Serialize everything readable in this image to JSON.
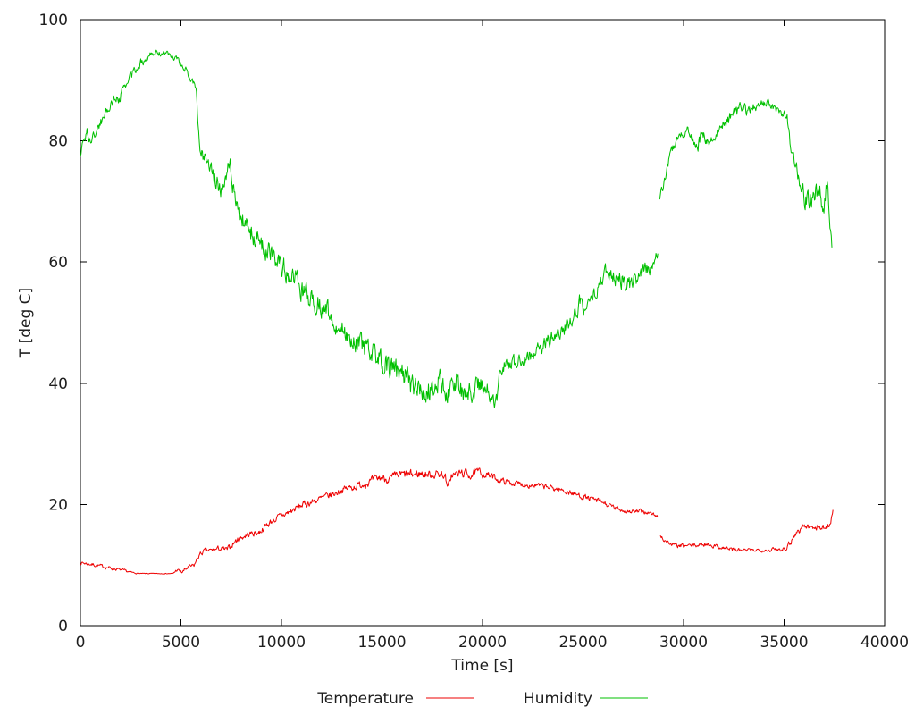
{
  "page": {
    "background": "#ffffff"
  },
  "chart_data": {
    "type": "line",
    "title": "",
    "xlabel": "Time [s]",
    "ylabel": "T [deg C]",
    "xlim": [
      0,
      40000
    ],
    "ylim": [
      0,
      100
    ],
    "xticks": [
      0,
      5000,
      10000,
      15000,
      20000,
      25000,
      30000,
      35000,
      40000
    ],
    "yticks": [
      0,
      20,
      40,
      60,
      80,
      100
    ],
    "grid": false,
    "legend_position": "below-center",
    "axis_color": "#000000",
    "text_color": "#1e1e1e",
    "legend": [
      {
        "label": "Temperature",
        "color": "#ee0000"
      },
      {
        "label": "Humidity",
        "color": "#00c000"
      }
    ],
    "series": [
      {
        "name": "Temperature",
        "color": "#ee0000",
        "points_format": [
          "t_seconds",
          "value_degC",
          "noise_halfrange"
        ],
        "segments": [
          [
            [
              0,
              10.4,
              0.25
            ],
            [
              400,
              10.2,
              0.25
            ],
            [
              900,
              9.9,
              0.25
            ],
            [
              1500,
              9.5,
              0.25
            ],
            [
              2000,
              9.2,
              0.2
            ],
            [
              2500,
              8.8,
              0.15
            ],
            [
              2900,
              8.6,
              0.05
            ],
            [
              4600,
              8.6,
              0.05
            ],
            [
              4800,
              9.2,
              0.25
            ],
            [
              5050,
              8.8,
              0.25
            ],
            [
              5350,
              9.6,
              0.3
            ],
            [
              5650,
              9.9,
              0.3
            ],
            [
              5750,
              10.6,
              0.3
            ],
            [
              5900,
              11.6,
              0.35
            ],
            [
              6150,
              12.3,
              0.35
            ],
            [
              6500,
              12.4,
              0.35
            ],
            [
              6900,
              12.7,
              0.4
            ],
            [
              7300,
              12.5,
              0.4
            ],
            [
              7700,
              13.9,
              0.4
            ],
            [
              8100,
              14.7,
              0.45
            ],
            [
              8500,
              15.2,
              0.45
            ],
            [
              8900,
              15.4,
              0.45
            ],
            [
              9200,
              16.4,
              0.5
            ],
            [
              9600,
              17.4,
              0.5
            ],
            [
              10000,
              18.1,
              0.5
            ],
            [
              10500,
              18.9,
              0.5
            ],
            [
              11000,
              19.9,
              0.5
            ],
            [
              11500,
              20.4,
              0.5
            ],
            [
              12000,
              21.0,
              0.5
            ],
            [
              12500,
              21.6,
              0.5
            ],
            [
              13100,
              22.5,
              0.5
            ],
            [
              13700,
              23.0,
              0.55
            ],
            [
              14300,
              23.6,
              0.55
            ],
            [
              14900,
              24.4,
              0.6
            ],
            [
              15400,
              24.2,
              0.6
            ],
            [
              15900,
              24.9,
              0.65
            ],
            [
              16400,
              24.8,
              0.7
            ],
            [
              16900,
              25.1,
              0.65
            ],
            [
              17400,
              24.9,
              0.6
            ],
            [
              17900,
              25.1,
              0.6
            ],
            [
              18150,
              24.7,
              0.4
            ],
            [
              18250,
              22.7,
              0.3
            ],
            [
              18450,
              24.8,
              0.6
            ],
            [
              19000,
              25.2,
              0.65
            ],
            [
              19400,
              24.9,
              0.65
            ],
            [
              19800,
              25.3,
              0.6
            ],
            [
              20200,
              24.9,
              0.55
            ],
            [
              20600,
              24.4,
              0.5
            ],
            [
              21000,
              23.9,
              0.4
            ],
            [
              21500,
              23.5,
              0.4
            ],
            [
              22100,
              23.3,
              0.4
            ],
            [
              22700,
              23.1,
              0.4
            ],
            [
              23300,
              22.8,
              0.4
            ],
            [
              23900,
              22.4,
              0.4
            ],
            [
              24500,
              21.8,
              0.4
            ],
            [
              25000,
              21.3,
              0.4
            ],
            [
              25500,
              20.8,
              0.4
            ],
            [
              26000,
              20.3,
              0.4
            ],
            [
              26400,
              19.6,
              0.4
            ],
            [
              26800,
              19.2,
              0.35
            ],
            [
              27200,
              18.9,
              0.35
            ],
            [
              27700,
              18.8,
              0.35
            ],
            [
              28200,
              18.7,
              0.3
            ],
            [
              28500,
              18.3,
              0.3
            ],
            [
              28700,
              18.0,
              0.25
            ]
          ],
          [
            [
              28830,
              14.9,
              0.4
            ],
            [
              29100,
              14.0,
              0.35
            ],
            [
              29400,
              13.4,
              0.3
            ],
            [
              29800,
              13.1,
              0.3
            ],
            [
              30300,
              13.2,
              0.3
            ],
            [
              30800,
              13.3,
              0.3
            ],
            [
              31200,
              13.5,
              0.3
            ],
            [
              31600,
              13.1,
              0.3
            ],
            [
              32100,
              12.8,
              0.3
            ],
            [
              32600,
              12.5,
              0.3
            ],
            [
              33100,
              12.4,
              0.25
            ],
            [
              33700,
              12.5,
              0.25
            ],
            [
              34300,
              12.5,
              0.3
            ],
            [
              34800,
              12.6,
              0.3
            ],
            [
              35100,
              12.9,
              0.35
            ],
            [
              35350,
              14.0,
              0.5
            ],
            [
              35550,
              15.1,
              0.5
            ],
            [
              35750,
              15.7,
              0.5
            ],
            [
              35950,
              16.5,
              0.5
            ],
            [
              36250,
              16.2,
              0.45
            ],
            [
              36550,
              16.4,
              0.45
            ],
            [
              36850,
              16.1,
              0.4
            ],
            [
              37150,
              16.3,
              0.4
            ],
            [
              37320,
              17.1,
              0.4
            ],
            [
              37430,
              19.1,
              0.3
            ]
          ]
        ]
      },
      {
        "name": "Humidity",
        "color": "#00c000",
        "points_format": [
          "t_seconds",
          "value",
          "noise_halfrange"
        ],
        "segments": [
          [
            [
              0,
              77.5,
              0.6
            ],
            [
              150,
              80.2,
              0.6
            ],
            [
              330,
              81.3,
              0.9
            ],
            [
              520,
              79.9,
              0.6
            ],
            [
              800,
              81.6,
              0.7
            ],
            [
              1200,
              84.3,
              0.7
            ],
            [
              1600,
              86.6,
              0.8
            ],
            [
              1950,
              87.3,
              0.8
            ],
            [
              2150,
              88.4,
              0.7
            ],
            [
              2550,
              90.9,
              0.7
            ],
            [
              3000,
              92.9,
              0.6
            ],
            [
              3400,
              94.0,
              0.5
            ],
            [
              3800,
              94.5,
              0.45
            ],
            [
              4250,
              94.4,
              0.45
            ],
            [
              4650,
              93.8,
              0.5
            ],
            [
              5000,
              92.7,
              0.5
            ],
            [
              5300,
              91.3,
              0.55
            ],
            [
              5600,
              89.7,
              0.6
            ],
            [
              5770,
              88.2,
              0.5
            ],
            [
              5850,
              82.8,
              0.9
            ],
            [
              5980,
              78.3,
              0.9
            ],
            [
              6150,
              77.2,
              1.1
            ],
            [
              6450,
              76.6,
              1.3
            ],
            [
              6650,
              74.2,
              1.3
            ],
            [
              6950,
              72.0,
              1.6
            ],
            [
              7250,
              75.4,
              1.6
            ],
            [
              7450,
              76.2,
              1.3
            ],
            [
              7650,
              70.8,
              1.4
            ],
            [
              7950,
              67.6,
              1.3
            ],
            [
              8350,
              65.6,
              1.6
            ],
            [
              8750,
              64.1,
              1.6
            ],
            [
              9050,
              62.6,
              1.6
            ],
            [
              9450,
              61.6,
              1.4
            ],
            [
              9850,
              60.1,
              1.4
            ],
            [
              10350,
              58.1,
              1.6
            ],
            [
              10850,
              56.1,
              1.6
            ],
            [
              11350,
              54.1,
              1.6
            ],
            [
              11750,
              53.6,
              1.6
            ],
            [
              12250,
              51.6,
              1.6
            ],
            [
              12750,
              49.6,
              1.4
            ],
            [
              13350,
              48.1,
              1.4
            ],
            [
              13950,
              46.1,
              1.6
            ],
            [
              14550,
              44.6,
              1.6
            ],
            [
              15050,
              43.4,
              1.7
            ],
            [
              15600,
              41.6,
              1.9
            ],
            [
              16000,
              42.1,
              1.9
            ],
            [
              16450,
              39.6,
              1.9
            ],
            [
              16850,
              38.6,
              1.6
            ],
            [
              17250,
              39.1,
              1.9
            ],
            [
              17650,
              38.1,
              1.6
            ],
            [
              17880,
              41.6,
              2.1
            ],
            [
              18100,
              38.9,
              1.9
            ],
            [
              18350,
              38.4,
              1.9
            ],
            [
              18700,
              39.9,
              2.1
            ],
            [
              19100,
              38.6,
              1.6
            ],
            [
              19500,
              38.6,
              1.6
            ],
            [
              19820,
              40.1,
              1.6
            ],
            [
              20150,
              38.6,
              1.6
            ],
            [
              20500,
              37.6,
              1.3
            ],
            [
              20720,
              37.1,
              0.9
            ],
            [
              20820,
              42.1,
              1.1
            ],
            [
              21050,
              43.1,
              1.1
            ],
            [
              21850,
              43.3,
              1.1
            ],
            [
              22450,
              44.8,
              1.1
            ],
            [
              23250,
              46.8,
              1.1
            ],
            [
              23950,
              48.8,
              1.1
            ],
            [
              24450,
              50.2,
              1.1
            ],
            [
              24820,
              53.1,
              1.3
            ],
            [
              25150,
              51.9,
              1.1
            ],
            [
              25700,
              55.7,
              1.1
            ],
            [
              26050,
              58.1,
              1.3
            ],
            [
              26450,
              57.1,
              1.3
            ],
            [
              26850,
              57.6,
              1.4
            ],
            [
              27350,
              56.1,
              1.1
            ],
            [
              27850,
              57.9,
              1.1
            ],
            [
              28350,
              59.4,
              1.1
            ],
            [
              28720,
              61.4,
              0.9
            ]
          ],
          [
            [
              28790,
              70.2,
              0.9
            ],
            [
              29050,
              73.6,
              0.7
            ],
            [
              29350,
              77.9,
              0.7
            ],
            [
              29700,
              80.4,
              0.7
            ],
            [
              30000,
              81.3,
              0.7
            ],
            [
              30250,
              81.6,
              0.7
            ],
            [
              30520,
              80.1,
              0.9
            ],
            [
              30720,
              79.4,
              0.9
            ],
            [
              30920,
              81.4,
              0.9
            ],
            [
              31120,
              80.1,
              0.9
            ],
            [
              31320,
              79.9,
              0.7
            ],
            [
              31620,
              81.6,
              0.9
            ],
            [
              32020,
              83.1,
              0.9
            ],
            [
              32420,
              84.1,
              0.9
            ],
            [
              32920,
              85.4,
              0.8
            ],
            [
              33220,
              84.8,
              0.8
            ],
            [
              33620,
              85.9,
              0.7
            ],
            [
              34020,
              86.1,
              0.7
            ],
            [
              34420,
              85.6,
              0.7
            ],
            [
              34720,
              84.6,
              0.6
            ],
            [
              35020,
              84.3,
              0.6
            ],
            [
              35150,
              84.0,
              0.6
            ],
            [
              35350,
              78.6,
              1.1
            ],
            [
              35650,
              75.4,
              1.3
            ],
            [
              35850,
              72.6,
              1.6
            ],
            [
              36050,
              70.1,
              1.6
            ],
            [
              36250,
              69.6,
              1.6
            ],
            [
              36450,
              71.1,
              1.6
            ],
            [
              36750,
              72.1,
              1.9
            ],
            [
              36950,
              69.1,
              1.6
            ],
            [
              37050,
              71.1,
              1.6
            ],
            [
              37150,
              73.1,
              1.6
            ],
            [
              37280,
              66.6,
              1.1
            ],
            [
              37380,
              62.4,
              0.9
            ]
          ]
        ]
      }
    ]
  }
}
